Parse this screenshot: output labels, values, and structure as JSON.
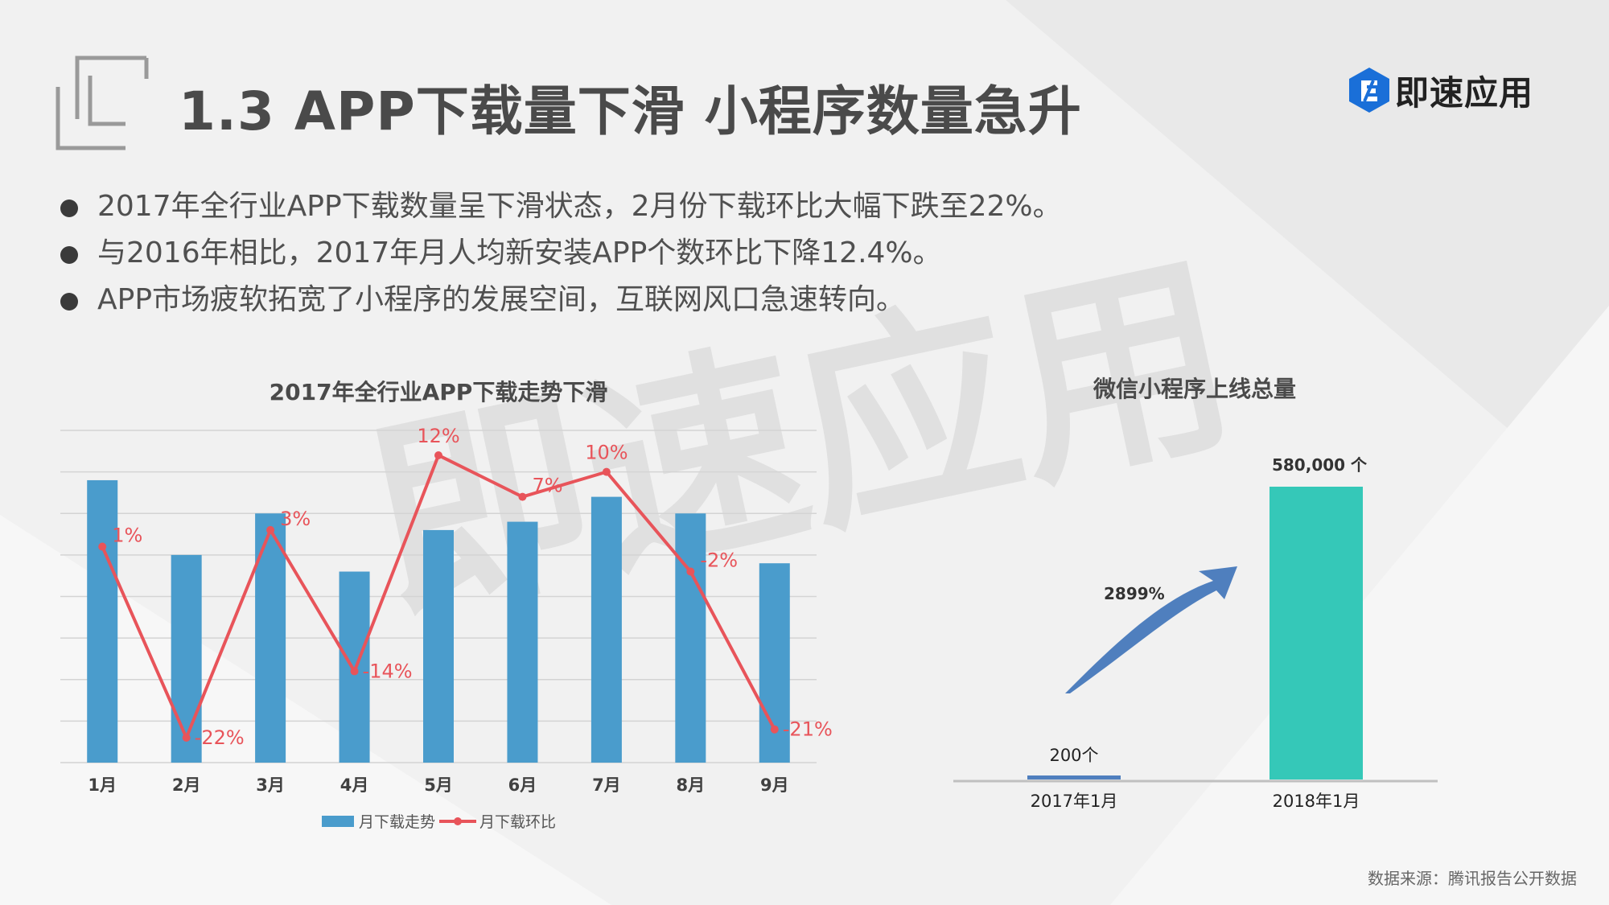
{
  "title": "1.3 APP下载量下滑 小程序数量急升",
  "logo": {
    "text": "即速应用",
    "icon": "e-hexagon-logo-icon"
  },
  "watermark": "即速应用",
  "bullets": [
    "2017年全行业APP下载数量呈下滑状态，2月份下载环比大幅下跌至22%。",
    "与2016年相比，2017年月人均新安装APP个数环比下降12.4%。",
    "APP市场疲软拓宽了小程序的发展空间，互联网风口急速转向。"
  ],
  "source": "数据来源：腾讯报告公开数据",
  "colors": {
    "bar": "#4a9ccc",
    "line": "#e8545a",
    "bar2": "#35c8b8",
    "bar2_small": "#4f7fbe",
    "arrow": "#4f7fbe"
  },
  "chart_data": [
    {
      "type": "bar+line",
      "title": "2017年全行业APP下载走势下滑",
      "categories": [
        "1月",
        "2月",
        "3月",
        "4月",
        "5月",
        "6月",
        "7月",
        "8月",
        "9月"
      ],
      "series": [
        {
          "name": "月下载走势",
          "type": "bar",
          "values": [
            68,
            50,
            60,
            46,
            56,
            58,
            64,
            60,
            48
          ]
        },
        {
          "name": "月下载环比",
          "type": "line",
          "values": [
            1,
            -22,
            3,
            -14,
            12,
            7,
            10,
            -2,
            -21
          ],
          "labels": [
            "1%",
            "-22%",
            "3%",
            "-14%",
            "12%",
            "7%",
            "10%",
            "-2%",
            "-21%"
          ]
        }
      ],
      "bar_ylim": [
        0,
        80
      ],
      "line_ylim": [
        -25,
        15
      ],
      "grid": true,
      "legend": "bottom"
    },
    {
      "type": "bar",
      "title": "微信小程序上线总量",
      "categories": [
        "2017年1月",
        "2018年1月"
      ],
      "values": [
        200,
        580000
      ],
      "value_labels": [
        "200个",
        "580,000 个"
      ],
      "annotation": "2899%",
      "ylim": [
        0,
        600000
      ]
    }
  ]
}
